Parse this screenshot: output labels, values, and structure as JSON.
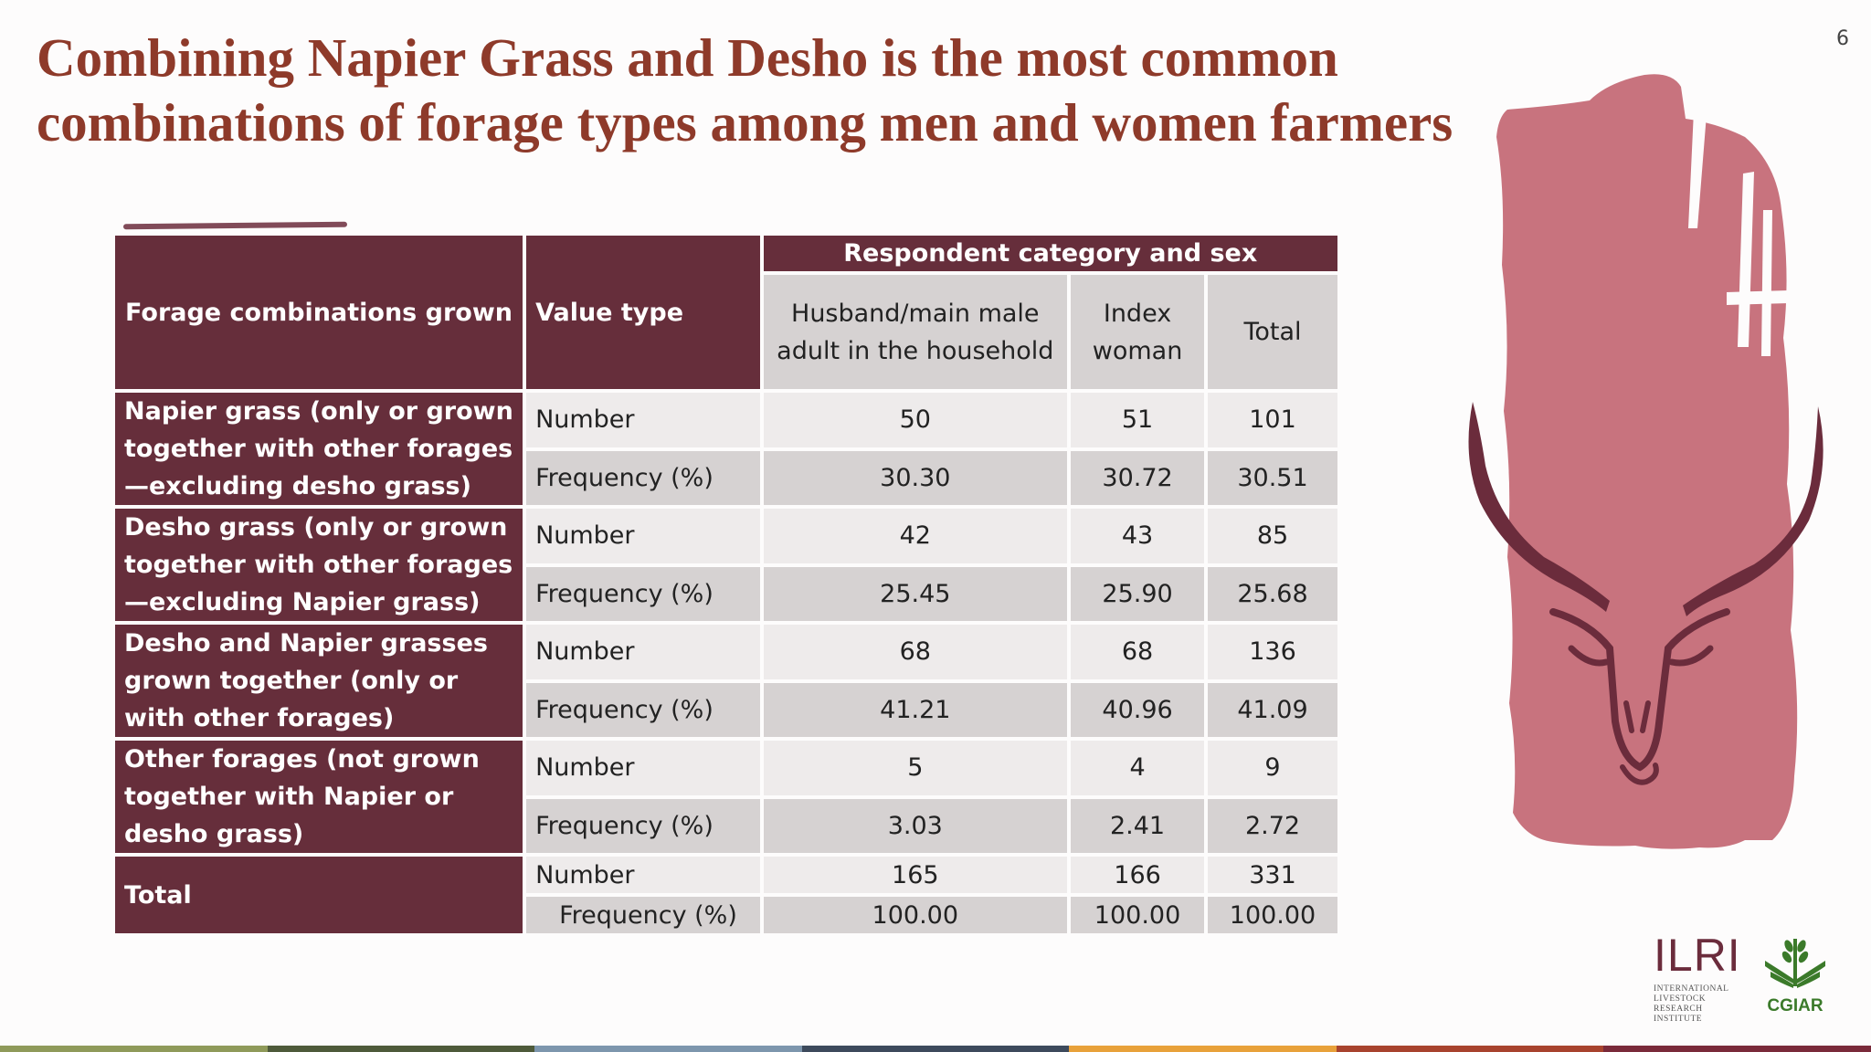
{
  "slide": {
    "title": "Combining Napier Grass and Desho is the most common combinations of forage types among men and women farmers",
    "page_number": "6"
  },
  "table": {
    "col_forage": "Forage combinations grown",
    "col_value_type": "Value type",
    "group_header": "Respondent category and sex",
    "sub_headers": [
      "Husband/main male adult in the household",
      "Index woman",
      "Total"
    ],
    "groups": [
      {
        "label": "Napier grass (only or grown together with other forages—excluding desho grass)",
        "rows": [
          {
            "type": "Number",
            "values": [
              "50",
              "51",
              "101"
            ]
          },
          {
            "type": "Frequency (%)",
            "values": [
              "30.30",
              "30.72",
              "30.51"
            ]
          }
        ]
      },
      {
        "label": "Desho grass (only or grown together with other forages—excluding Napier grass)",
        "rows": [
          {
            "type": "Number",
            "values": [
              "42",
              "43",
              "85"
            ]
          },
          {
            "type": "Frequency (%)",
            "values": [
              "25.45",
              "25.90",
              "25.68"
            ]
          }
        ]
      },
      {
        "label": "Desho and Napier grasses grown together (only or with other forages)",
        "rows": [
          {
            "type": "Number",
            "values": [
              "68",
              "68",
              "136"
            ]
          },
          {
            "type": "Frequency (%)",
            "values": [
              "41.21",
              "40.96",
              "41.09"
            ]
          }
        ]
      },
      {
        "label": "Other forages (not grown together with Napier or desho grass)",
        "rows": [
          {
            "type": "Number",
            "values": [
              "5",
              "4",
              "9"
            ]
          },
          {
            "type": "Frequency (%)",
            "values": [
              "3.03",
              "2.41",
              "2.72"
            ]
          }
        ]
      },
      {
        "label": "Total",
        "rows": [
          {
            "type": "Number",
            "values": [
              "165",
              "166",
              "331"
            ]
          },
          {
            "type": "Frequency (%)",
            "values": [
              "100.00",
              "100.00",
              "100.00"
            ]
          }
        ]
      }
    ]
  },
  "logos": {
    "ilri_big": "ILRI",
    "ilri_lines": [
      "INTERNATIONAL",
      "LIVESTOCK RESEARCH",
      "INSTITUTE"
    ],
    "cgiar": "CGIAR"
  },
  "colors": {
    "title": "#8e3a2a",
    "header_bg": "#662e3b",
    "row_light": "#eeebeb",
    "row_dark": "#d6d2d2",
    "decoration_pink": "#c8737e",
    "horn": "#6b2c3c",
    "footer": [
      "#8f9a5a",
      "#4e5a3a",
      "#7d96ad",
      "#3d4a5c",
      "#e8a13a",
      "#a8432e",
      "#7a2a3a"
    ]
  },
  "icons": [
    "cow-head-illustration",
    "cgiar-wheat-icon"
  ]
}
